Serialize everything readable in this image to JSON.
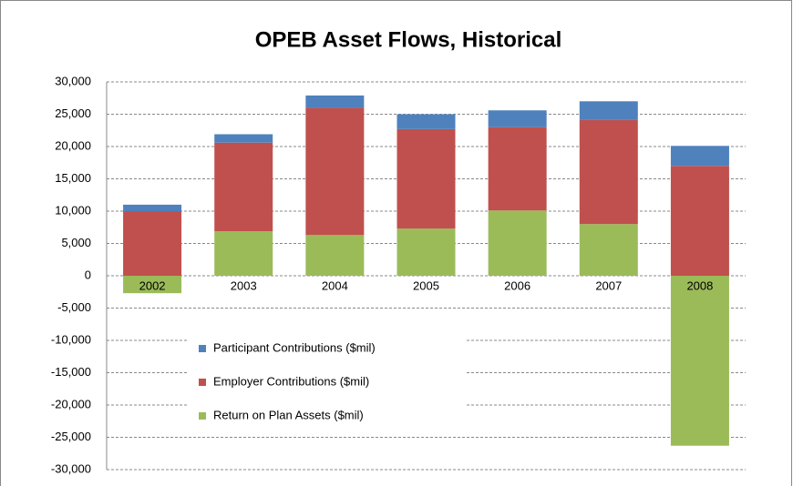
{
  "chart_data": {
    "type": "stacked_bar",
    "title": "OPEB Asset Flows, Historical",
    "categories": [
      "2002",
      "2003",
      "2004",
      "2005",
      "2006",
      "2007",
      "2008"
    ],
    "series": [
      {
        "name": "Return on Plan Assets ($mil)",
        "color": "#9bbb59",
        "values": [
          -2700,
          6900,
          6300,
          7300,
          10100,
          8000,
          -26300
        ]
      },
      {
        "name": "Employer Contributions ($mil)",
        "color": "#c0504d",
        "values": [
          10000,
          13700,
          19700,
          15400,
          12900,
          16100,
          17000
        ]
      },
      {
        "name": "Participant Contributions ($mil)",
        "color": "#4f81bd",
        "values": [
          1000,
          1300,
          1900,
          2300,
          2600,
          2900,
          3100
        ]
      }
    ],
    "ylim": [
      -30000,
      30000
    ],
    "yticks": [
      {
        "value": -30000,
        "label": "-30,000"
      },
      {
        "value": -25000,
        "label": "-25,000"
      },
      {
        "value": -20000,
        "label": "-20,000"
      },
      {
        "value": -15000,
        "label": "-15,000"
      },
      {
        "value": -10000,
        "label": "-10,000"
      },
      {
        "value": -5000,
        "label": "-5,000"
      },
      0,
      {
        "value": 5000,
        "label": "5,000"
      },
      {
        "value": 10000,
        "label": "10,000"
      },
      {
        "value": 15000,
        "label": "15,000"
      },
      {
        "value": 20000,
        "label": "20,000"
      },
      {
        "value": 25000,
        "label": "25,000"
      },
      {
        "value": 30000,
        "label": "30,000"
      }
    ],
    "grid": true,
    "legend": "left"
  }
}
